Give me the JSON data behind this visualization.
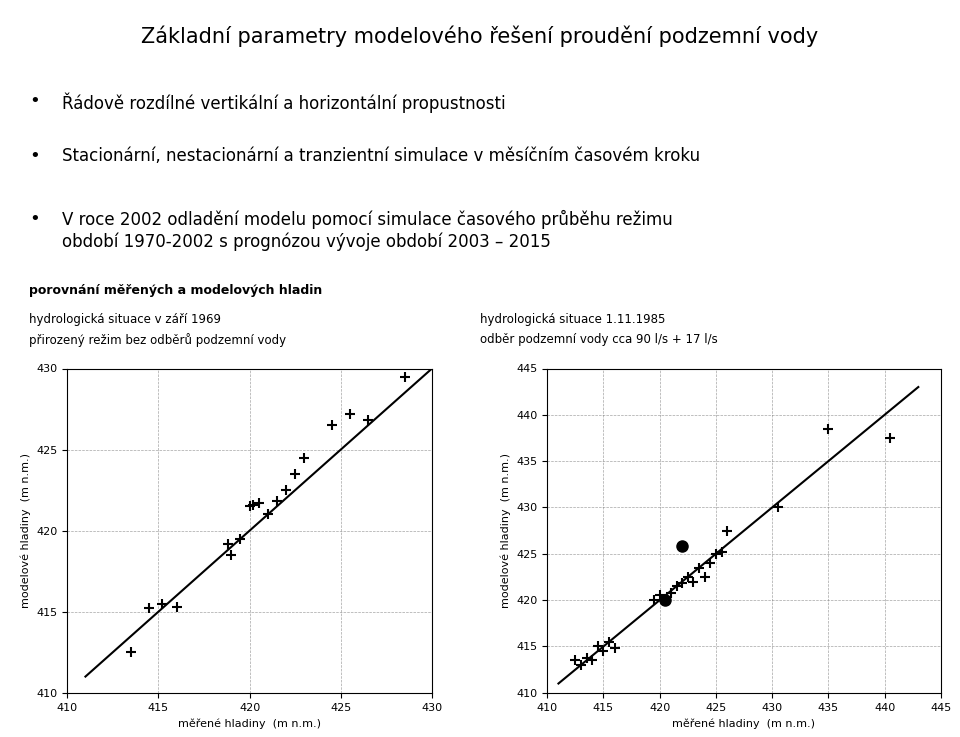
{
  "title": "Základní parametry modelového řešení proudění podzemní vody",
  "bullets": [
    "Řádově rozdílné vertikální a horizontální propustnosti",
    "Stacionární, nestacionární a tranzientní simulace v měsíčním časovém kroku",
    "V roce 2002 odladění modelu pomocí simulace časového průběhu režimu\nobdobí 1970-2002 s prognózou vývoje období 2003 – 2015"
  ],
  "subtitle_bold": "porovnání měřených a modelových hladin",
  "left_label1": "hydrologická situace v září 1969",
  "left_label2": "přirozený režim bez odběrů podzemní vody",
  "right_label1": "hydrologická situace 1.11.1985",
  "right_label2": "odběr podzemní vody cca 90 l/s + 17 l/s",
  "plot1": {
    "xlim": [
      410,
      430
    ],
    "ylim": [
      410,
      430
    ],
    "xticks": [
      410,
      415,
      420,
      425,
      430
    ],
    "yticks": [
      410,
      415,
      420,
      425,
      430
    ],
    "xlabel": "měřené hladiny  (m n.m.)",
    "ylabel": "modelové hladiny  (m n.m.)",
    "line_x": [
      411,
      430
    ],
    "line_y": [
      411,
      430
    ],
    "points_plus": [
      [
        413.5,
        412.5
      ],
      [
        414.5,
        415.2
      ],
      [
        415.2,
        415.5
      ],
      [
        416.0,
        415.3
      ],
      [
        418.8,
        419.2
      ],
      [
        419.0,
        418.5
      ],
      [
        419.5,
        419.5
      ],
      [
        420.0,
        421.5
      ],
      [
        420.2,
        421.6
      ],
      [
        420.5,
        421.7
      ],
      [
        421.0,
        421.0
      ],
      [
        421.5,
        421.8
      ],
      [
        422.0,
        422.5
      ],
      [
        422.5,
        423.5
      ],
      [
        423.0,
        424.5
      ],
      [
        424.5,
        426.5
      ],
      [
        425.5,
        427.2
      ],
      [
        426.5,
        426.8
      ],
      [
        428.5,
        429.5
      ]
    ]
  },
  "plot2": {
    "xlim": [
      410,
      445
    ],
    "ylim": [
      410,
      445
    ],
    "xticks": [
      410,
      415,
      420,
      425,
      430,
      435,
      440,
      445
    ],
    "yticks": [
      410,
      415,
      420,
      425,
      430,
      435,
      440,
      445
    ],
    "xlabel": "měřené hladiny  (m n.m.)",
    "ylabel": "modelové hladiny  (m n.m.)",
    "line_x": [
      411,
      443
    ],
    "line_y": [
      411,
      443
    ],
    "points_plus": [
      [
        412.5,
        413.5
      ],
      [
        413.0,
        413.0
      ],
      [
        413.5,
        413.8
      ],
      [
        414.0,
        413.5
      ],
      [
        414.5,
        415.0
      ],
      [
        415.0,
        414.5
      ],
      [
        415.5,
        415.5
      ],
      [
        416.0,
        414.8
      ],
      [
        419.5,
        420.0
      ],
      [
        420.0,
        420.5
      ],
      [
        420.5,
        420.0
      ],
      [
        421.0,
        420.8
      ],
      [
        421.5,
        421.5
      ],
      [
        422.0,
        421.8
      ],
      [
        422.5,
        422.5
      ],
      [
        423.0,
        422.0
      ],
      [
        423.5,
        423.5
      ],
      [
        424.0,
        422.5
      ],
      [
        424.5,
        424.0
      ],
      [
        425.0,
        425.0
      ],
      [
        425.5,
        425.2
      ],
      [
        426.0,
        427.5
      ],
      [
        430.5,
        430.0
      ],
      [
        435.0,
        438.5
      ],
      [
        440.5,
        437.5
      ]
    ],
    "points_dot": [
      [
        422.0,
        425.8
      ],
      [
        420.5,
        420.0
      ]
    ]
  },
  "bg_color": "#ffffff",
  "text_color": "#000000",
  "title_fontsize": 15,
  "bullet_fontsize": 12,
  "label_fontsize": 8.5,
  "axis_fontsize": 8
}
